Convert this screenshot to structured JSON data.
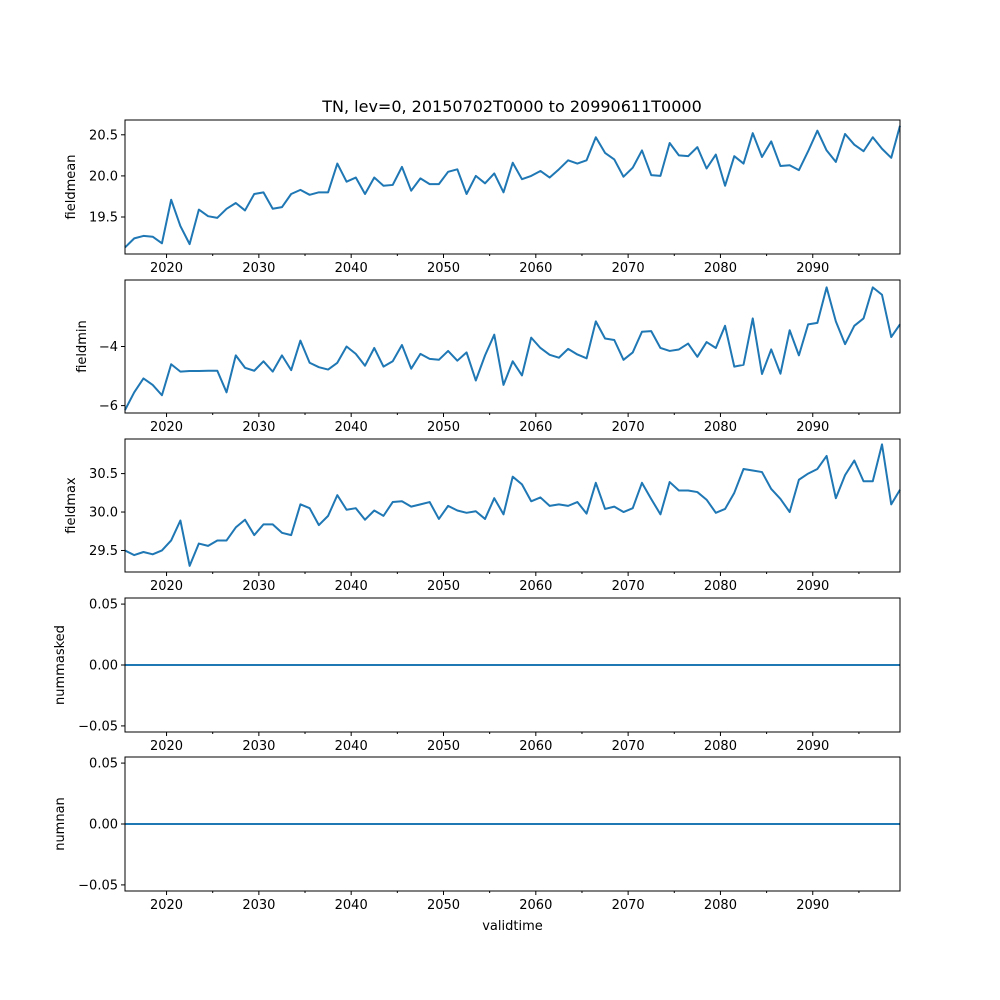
{
  "title": "TN, lev=0, 20150702T0000 to 20990611T0000",
  "line_color": "#1f77b4",
  "chart_data": [
    {
      "type": "line",
      "ylabel": "fieldmean",
      "x_range": [
        2015.5,
        2099.45
      ],
      "ylim": [
        19.05,
        20.68
      ],
      "yticks": [
        19.5,
        20.0,
        20.5
      ],
      "ytick_labels": [
        "19.5",
        "20.0",
        "20.5"
      ],
      "x": [
        2015.5,
        2016.5,
        2017.5,
        2018.5,
        2019.5,
        2020.5,
        2021.5,
        2022.5,
        2023.5,
        2024.5,
        2025.5,
        2026.5,
        2027.5,
        2028.5,
        2029.5,
        2030.5,
        2031.5,
        2032.5,
        2033.5,
        2034.5,
        2035.5,
        2036.5,
        2037.5,
        2038.5,
        2039.5,
        2040.5,
        2041.5,
        2042.5,
        2043.5,
        2044.5,
        2045.5,
        2046.5,
        2047.5,
        2048.5,
        2049.5,
        2050.5,
        2051.5,
        2052.5,
        2053.5,
        2054.5,
        2055.5,
        2056.5,
        2057.5,
        2058.5,
        2059.5,
        2060.5,
        2061.5,
        2062.5,
        2063.5,
        2064.5,
        2065.5,
        2066.5,
        2067.5,
        2068.5,
        2069.5,
        2070.5,
        2071.5,
        2072.5,
        2073.5,
        2074.5,
        2075.5,
        2076.5,
        2077.5,
        2078.5,
        2079.5,
        2080.5,
        2081.5,
        2082.5,
        2083.5,
        2084.5,
        2085.5,
        2086.5,
        2087.5,
        2088.5,
        2089.5,
        2090.5,
        2091.5,
        2092.5,
        2093.5,
        2094.5,
        2095.5,
        2096.5,
        2097.5,
        2098.5,
        2099.45
      ],
      "y": [
        19.13,
        19.24,
        19.27,
        19.26,
        19.18,
        19.71,
        19.39,
        19.17,
        19.59,
        19.51,
        19.49,
        19.6,
        19.67,
        19.58,
        19.78,
        19.8,
        19.6,
        19.62,
        19.78,
        19.83,
        19.77,
        19.8,
        19.8,
        20.15,
        19.93,
        19.98,
        19.78,
        19.98,
        19.88,
        19.89,
        20.11,
        19.82,
        19.97,
        19.9,
        19.9,
        20.05,
        20.08,
        19.78,
        20.0,
        19.91,
        20.03,
        19.8,
        20.16,
        19.96,
        20.0,
        20.06,
        19.98,
        20.08,
        20.19,
        20.15,
        20.19,
        20.47,
        20.28,
        20.2,
        19.99,
        20.1,
        20.31,
        20.01,
        20.0,
        20.4,
        20.25,
        20.24,
        20.35,
        20.09,
        20.26,
        19.88,
        20.24,
        20.15,
        20.52,
        20.23,
        20.42,
        20.12,
        20.13,
        20.07,
        20.3,
        20.55,
        20.31,
        20.17,
        20.51,
        20.38,
        20.3,
        20.47,
        20.33,
        20.22,
        20.61
      ]
    },
    {
      "type": "line",
      "ylabel": "fieldmin",
      "x_range": [
        2015.5,
        2099.45
      ],
      "ylim": [
        -6.25,
        -1.75
      ],
      "yticks": [
        -6,
        -4
      ],
      "ytick_labels": [
        "−6",
        "−4"
      ],
      "x": [
        2015.5,
        2016.5,
        2017.5,
        2018.5,
        2019.5,
        2020.5,
        2021.5,
        2022.5,
        2023.5,
        2024.5,
        2025.5,
        2026.5,
        2027.5,
        2028.5,
        2029.5,
        2030.5,
        2031.5,
        2032.5,
        2033.5,
        2034.5,
        2035.5,
        2036.5,
        2037.5,
        2038.5,
        2039.5,
        2040.5,
        2041.5,
        2042.5,
        2043.5,
        2044.5,
        2045.5,
        2046.5,
        2047.5,
        2048.5,
        2049.5,
        2050.5,
        2051.5,
        2052.5,
        2053.5,
        2054.5,
        2055.5,
        2056.5,
        2057.5,
        2058.5,
        2059.5,
        2060.5,
        2061.5,
        2062.5,
        2063.5,
        2064.5,
        2065.5,
        2066.5,
        2067.5,
        2068.5,
        2069.5,
        2070.5,
        2071.5,
        2072.5,
        2073.5,
        2074.5,
        2075.5,
        2076.5,
        2077.5,
        2078.5,
        2079.5,
        2080.5,
        2081.5,
        2082.5,
        2083.5,
        2084.5,
        2085.5,
        2086.5,
        2087.5,
        2088.5,
        2089.5,
        2090.5,
        2091.5,
        2092.5,
        2093.5,
        2094.5,
        2095.5,
        2096.5,
        2097.5,
        2098.5,
        2099.45
      ],
      "y": [
        -6.15,
        -5.55,
        -5.08,
        -5.3,
        -5.65,
        -4.6,
        -4.85,
        -4.83,
        -4.83,
        -4.82,
        -4.82,
        -5.55,
        -4.3,
        -4.72,
        -4.82,
        -4.5,
        -4.85,
        -4.3,
        -4.8,
        -3.8,
        -4.55,
        -4.7,
        -4.78,
        -4.55,
        -4.0,
        -4.25,
        -4.65,
        -4.05,
        -4.68,
        -4.5,
        -3.95,
        -4.75,
        -4.25,
        -4.42,
        -4.45,
        -4.15,
        -4.48,
        -4.2,
        -5.15,
        -4.3,
        -3.6,
        -5.3,
        -4.5,
        -4.98,
        -3.7,
        -4.05,
        -4.28,
        -4.38,
        -4.08,
        -4.27,
        -4.4,
        -3.15,
        -3.73,
        -3.78,
        -4.45,
        -4.2,
        -3.5,
        -3.48,
        -4.05,
        -4.15,
        -4.1,
        -3.9,
        -4.35,
        -3.85,
        -4.05,
        -3.3,
        -4.68,
        -4.62,
        -3.05,
        -4.93,
        -4.1,
        -4.92,
        -3.45,
        -4.3,
        -3.25,
        -3.2,
        -2.0,
        -3.15,
        -3.92,
        -3.3,
        -3.05,
        -2.0,
        -2.25,
        -3.68,
        -3.25
      ]
    },
    {
      "type": "line",
      "ylabel": "fieldmax",
      "x_range": [
        2015.5,
        2099.45
      ],
      "ylim": [
        29.22,
        30.95
      ],
      "yticks": [
        29.5,
        30.0,
        30.5
      ],
      "ytick_labels": [
        "29.5",
        "30.0",
        "30.5"
      ],
      "x": [
        2015.5,
        2016.5,
        2017.5,
        2018.5,
        2019.5,
        2020.5,
        2021.5,
        2022.5,
        2023.5,
        2024.5,
        2025.5,
        2026.5,
        2027.5,
        2028.5,
        2029.5,
        2030.5,
        2031.5,
        2032.5,
        2033.5,
        2034.5,
        2035.5,
        2036.5,
        2037.5,
        2038.5,
        2039.5,
        2040.5,
        2041.5,
        2042.5,
        2043.5,
        2044.5,
        2045.5,
        2046.5,
        2047.5,
        2048.5,
        2049.5,
        2050.5,
        2051.5,
        2052.5,
        2053.5,
        2054.5,
        2055.5,
        2056.5,
        2057.5,
        2058.5,
        2059.5,
        2060.5,
        2061.5,
        2062.5,
        2063.5,
        2064.5,
        2065.5,
        2066.5,
        2067.5,
        2068.5,
        2069.5,
        2070.5,
        2071.5,
        2072.5,
        2073.5,
        2074.5,
        2075.5,
        2076.5,
        2077.5,
        2078.5,
        2079.5,
        2080.5,
        2081.5,
        2082.5,
        2083.5,
        2084.5,
        2085.5,
        2086.5,
        2087.5,
        2088.5,
        2089.5,
        2090.5,
        2091.5,
        2092.5,
        2093.5,
        2094.5,
        2095.5,
        2096.5,
        2097.5,
        2098.5,
        2099.45
      ],
      "y": [
        29.5,
        29.44,
        29.48,
        29.45,
        29.5,
        29.63,
        29.89,
        29.3,
        29.59,
        29.56,
        29.63,
        29.63,
        29.8,
        29.9,
        29.7,
        29.84,
        29.84,
        29.73,
        29.7,
        30.1,
        30.05,
        29.83,
        29.95,
        30.22,
        30.03,
        30.05,
        29.9,
        30.02,
        29.95,
        30.13,
        30.14,
        30.07,
        30.1,
        30.13,
        29.91,
        30.08,
        30.02,
        29.99,
        30.01,
        29.91,
        30.18,
        29.97,
        30.46,
        30.36,
        30.14,
        30.19,
        30.08,
        30.1,
        30.08,
        30.13,
        29.98,
        30.38,
        30.04,
        30.07,
        30.0,
        30.05,
        30.38,
        30.17,
        29.97,
        30.39,
        30.28,
        30.28,
        30.26,
        30.16,
        29.99,
        30.04,
        30.25,
        30.56,
        30.54,
        30.52,
        30.3,
        30.17,
        30.0,
        30.42,
        30.5,
        30.56,
        30.73,
        30.18,
        30.48,
        30.67,
        30.4,
        30.4,
        30.88,
        30.1,
        30.29
      ]
    },
    {
      "type": "line",
      "ylabel": "nummasked",
      "x_range": [
        2015.5,
        2099.45
      ],
      "ylim": [
        -0.055,
        0.055
      ],
      "yticks": [
        -0.05,
        0.0,
        0.05
      ],
      "ytick_labels": [
        "−0.05",
        "0.00",
        "0.05"
      ],
      "x": [
        2015.5,
        2099.45
      ],
      "y": [
        0,
        0
      ]
    },
    {
      "type": "line",
      "ylabel": "numnan",
      "xlabel": "validtime",
      "x_range": [
        2015.5,
        2099.45
      ],
      "ylim": [
        -0.055,
        0.055
      ],
      "yticks": [
        -0.05,
        0.0,
        0.05
      ],
      "ytick_labels": [
        "−0.05",
        "0.00",
        "0.05"
      ],
      "x": [
        2015.5,
        2099.45
      ],
      "y": [
        0,
        0
      ]
    }
  ],
  "xticks_major": [
    2020,
    2030,
    2040,
    2050,
    2060,
    2070,
    2080,
    2090
  ],
  "xtick_labels": [
    "2020",
    "2030",
    "2040",
    "2050",
    "2060",
    "2070",
    "2080",
    "2090"
  ],
  "xticks_minor": [
    2025,
    2035,
    2045,
    2055,
    2065,
    2075,
    2085,
    2095
  ]
}
